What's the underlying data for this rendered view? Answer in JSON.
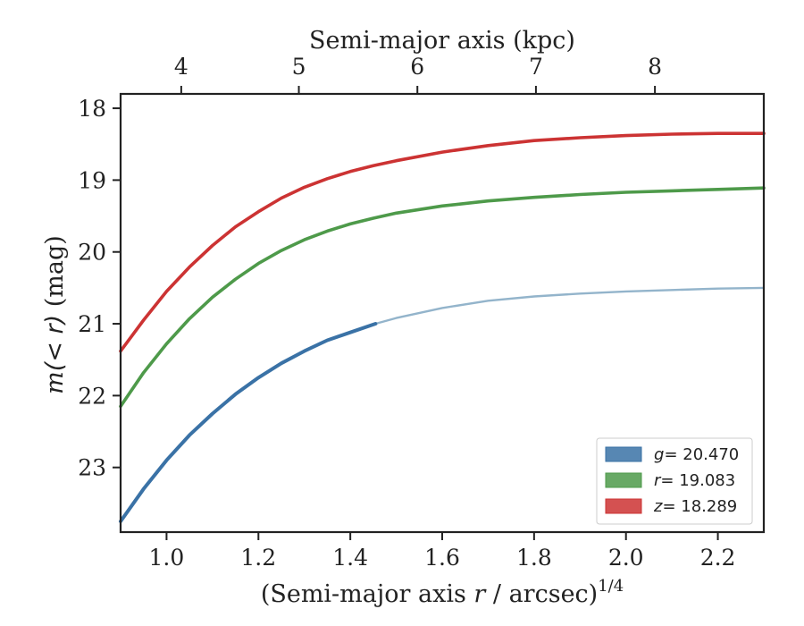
{
  "chart_data": {
    "type": "line",
    "xlabel_prefix": "(Semi-major axis ",
    "xlabel_var": "r",
    "xlabel_suffix": " / arcsec)",
    "xlabel_exp": "1/4",
    "ylabel_prefix": "m",
    "ylabel_math": "(< r)",
    "ylabel_suffix": " (mag)",
    "top_xlabel": "Semi-major axis (kpc)",
    "xlim": [
      0.9,
      2.3
    ],
    "ylim": [
      23.9,
      17.8
    ],
    "y_inverted": true,
    "xticks": [
      {
        "value": 1.0,
        "label": "1.0"
      },
      {
        "value": 1.2,
        "label": "1.2"
      },
      {
        "value": 1.4,
        "label": "1.4"
      },
      {
        "value": 1.6,
        "label": "1.6"
      },
      {
        "value": 1.8,
        "label": "1.8"
      },
      {
        "value": 2.0,
        "label": "2.0"
      },
      {
        "value": 2.2,
        "label": "2.2"
      }
    ],
    "yticks": [
      {
        "value": 18,
        "label": "18"
      },
      {
        "value": 19,
        "label": "19"
      },
      {
        "value": 20,
        "label": "20"
      },
      {
        "value": 21,
        "label": "21"
      },
      {
        "value": 22,
        "label": "22"
      },
      {
        "value": 23,
        "label": "23"
      }
    ],
    "top_ticks": [
      {
        "value": 1.032,
        "label": "4"
      },
      {
        "value": 1.288,
        "label": "5"
      },
      {
        "value": 1.546,
        "label": "6"
      },
      {
        "value": 1.804,
        "label": "7"
      },
      {
        "value": 2.063,
        "label": "8"
      }
    ],
    "legend_position": "lower-right",
    "series": [
      {
        "name": "g",
        "legend_value": "= 20.470",
        "color": "#3a72a6",
        "faded_color": "#93b4cb",
        "solid_until": 1.455,
        "x": [
          0.9,
          0.95,
          1.0,
          1.05,
          1.1,
          1.15,
          1.2,
          1.25,
          1.3,
          1.35,
          1.4,
          1.455,
          1.5,
          1.6,
          1.7,
          1.8,
          1.9,
          2.0,
          2.1,
          2.2,
          2.3
        ],
        "y": [
          23.75,
          23.3,
          22.9,
          22.55,
          22.25,
          21.98,
          21.75,
          21.55,
          21.38,
          21.23,
          21.12,
          21.0,
          20.92,
          20.78,
          20.68,
          20.62,
          20.58,
          20.55,
          20.53,
          20.51,
          20.5
        ]
      },
      {
        "name": "r",
        "legend_value": "= 19.083",
        "color": "#4e9a4a",
        "x": [
          0.9,
          0.95,
          1.0,
          1.05,
          1.1,
          1.15,
          1.2,
          1.25,
          1.3,
          1.35,
          1.4,
          1.45,
          1.5,
          1.6,
          1.7,
          1.8,
          1.9,
          2.0,
          2.1,
          2.2,
          2.3
        ],
        "y": [
          22.15,
          21.68,
          21.28,
          20.93,
          20.63,
          20.38,
          20.16,
          19.98,
          19.83,
          19.71,
          19.61,
          19.53,
          19.46,
          19.36,
          19.29,
          19.24,
          19.2,
          19.17,
          19.15,
          19.13,
          19.11
        ]
      },
      {
        "name": "z",
        "legend_value": "= 18.289",
        "color": "#cc3333",
        "x": [
          0.9,
          0.95,
          1.0,
          1.05,
          1.1,
          1.15,
          1.2,
          1.25,
          1.3,
          1.35,
          1.4,
          1.45,
          1.5,
          1.6,
          1.7,
          1.8,
          1.9,
          2.0,
          2.1,
          2.2,
          2.3
        ],
        "y": [
          21.38,
          20.95,
          20.55,
          20.21,
          19.91,
          19.65,
          19.44,
          19.25,
          19.1,
          18.98,
          18.88,
          18.8,
          18.73,
          18.61,
          18.52,
          18.45,
          18.41,
          18.38,
          18.36,
          18.35,
          18.35
        ]
      }
    ]
  }
}
